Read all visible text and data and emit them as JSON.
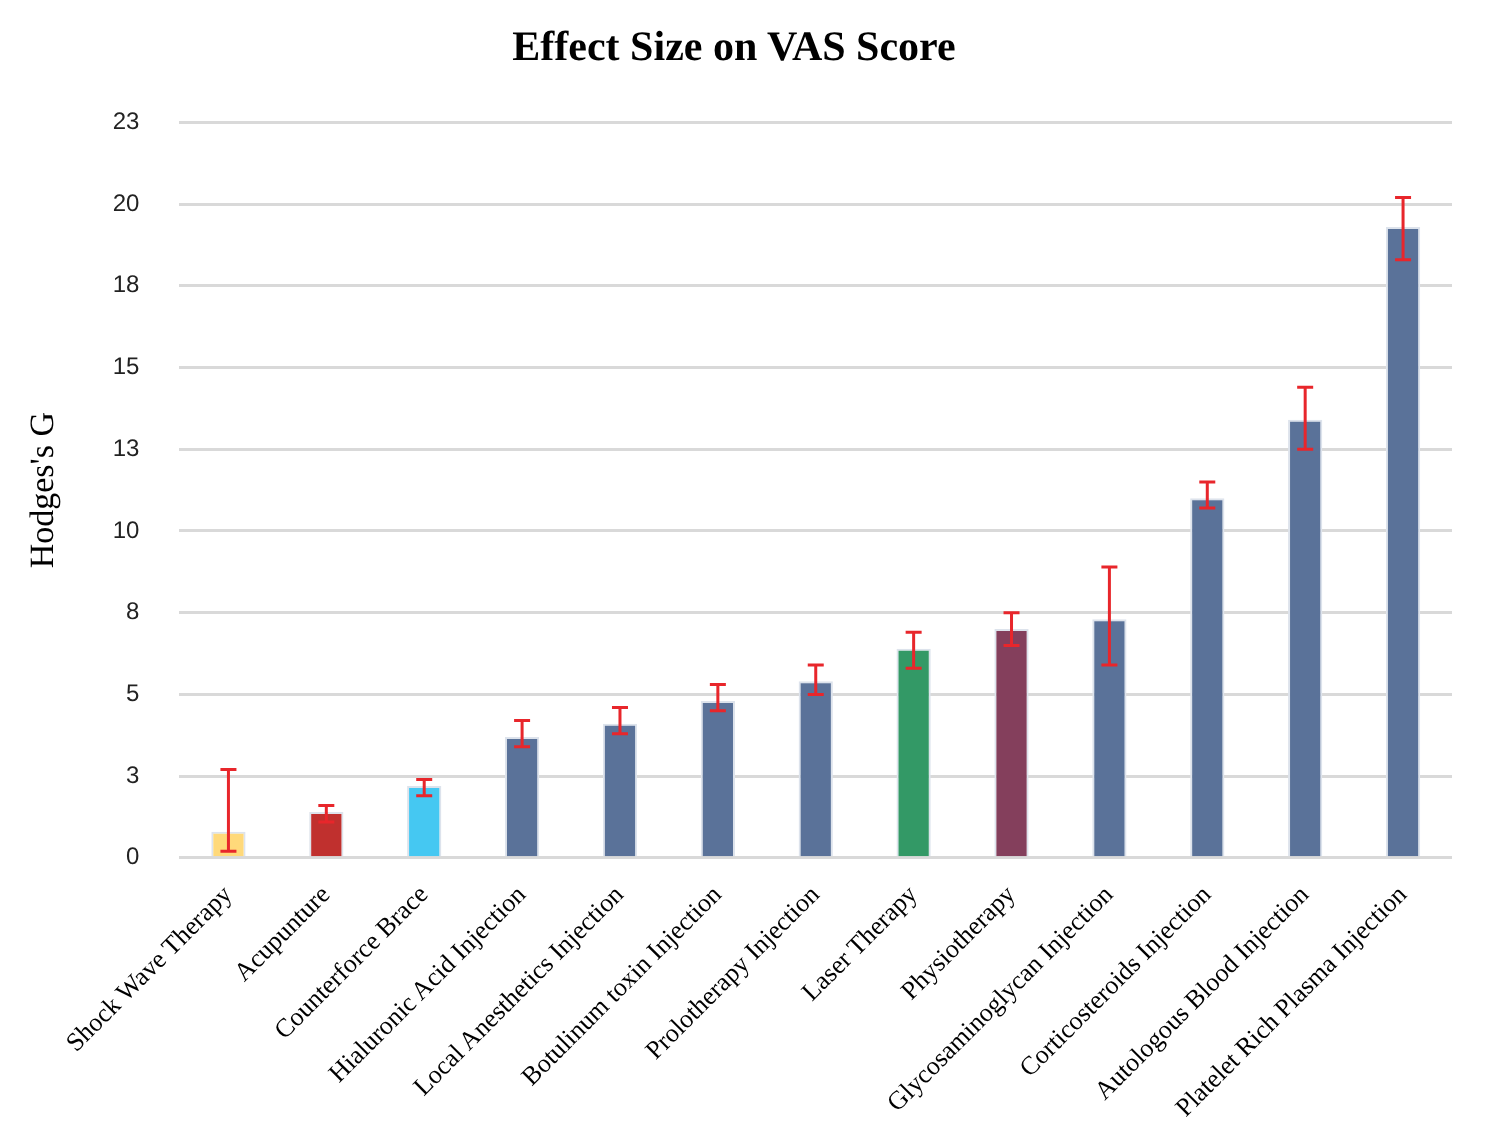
{
  "chart_data": {
    "type": "bar",
    "title": "Effect Size on VAS Score",
    "ylabel": "Hodges's G",
    "categories": [
      "Shock Wave Therapy",
      "Acupunture",
      "Counterforce Brace",
      "Hialuronic Acid Injection",
      "Local Anesthetics Injection",
      "Botulinum toxin Injection",
      "Prolotherapy Injection",
      "Laser Therapy",
      "Physiotherapy",
      "Glycosaminoglycan Injection",
      "Corticosteroids Injection",
      "Autologous Blood Injection",
      "Platelet Rich Plasma Injection"
    ],
    "values": [
      0.8,
      1.4,
      2.2,
      3.7,
      4.1,
      4.8,
      5.4,
      6.4,
      7.0,
      7.3,
      11.0,
      13.4,
      19.3
    ],
    "colors": [
      "#ffd97a",
      "#c0302e",
      "#45c8f2",
      "#5a7299",
      "#5a7299",
      "#5a7299",
      "#5a7299",
      "#339966",
      "#843f5c",
      "#5a7299",
      "#5a7299",
      "#5a7299",
      "#5a7299"
    ],
    "errors": [
      [
        0.2,
        2.7
      ],
      [
        1.1,
        1.6
      ],
      [
        1.9,
        2.4
      ],
      [
        3.4,
        4.2
      ],
      [
        3.8,
        4.6
      ],
      [
        4.5,
        5.3
      ],
      [
        5.0,
        5.9
      ],
      [
        5.8,
        6.9
      ],
      [
        6.5,
        7.5
      ],
      [
        5.9,
        8.9
      ],
      [
        10.7,
        11.5
      ],
      [
        12.5,
        14.4
      ],
      [
        18.3,
        20.2
      ]
    ],
    "ylim": [
      0,
      22.5
    ],
    "yticks": [
      0,
      {
        "value": 2.5,
        "label": "3"
      },
      5,
      {
        "value": 7.5,
        "label": "8"
      },
      10,
      {
        "value": 12.5,
        "label": "13"
      },
      15,
      {
        "value": 17.5,
        "label": "18"
      },
      20,
      {
        "value": 22.5,
        "label": "23"
      }
    ],
    "grid": "y",
    "legend": false
  }
}
